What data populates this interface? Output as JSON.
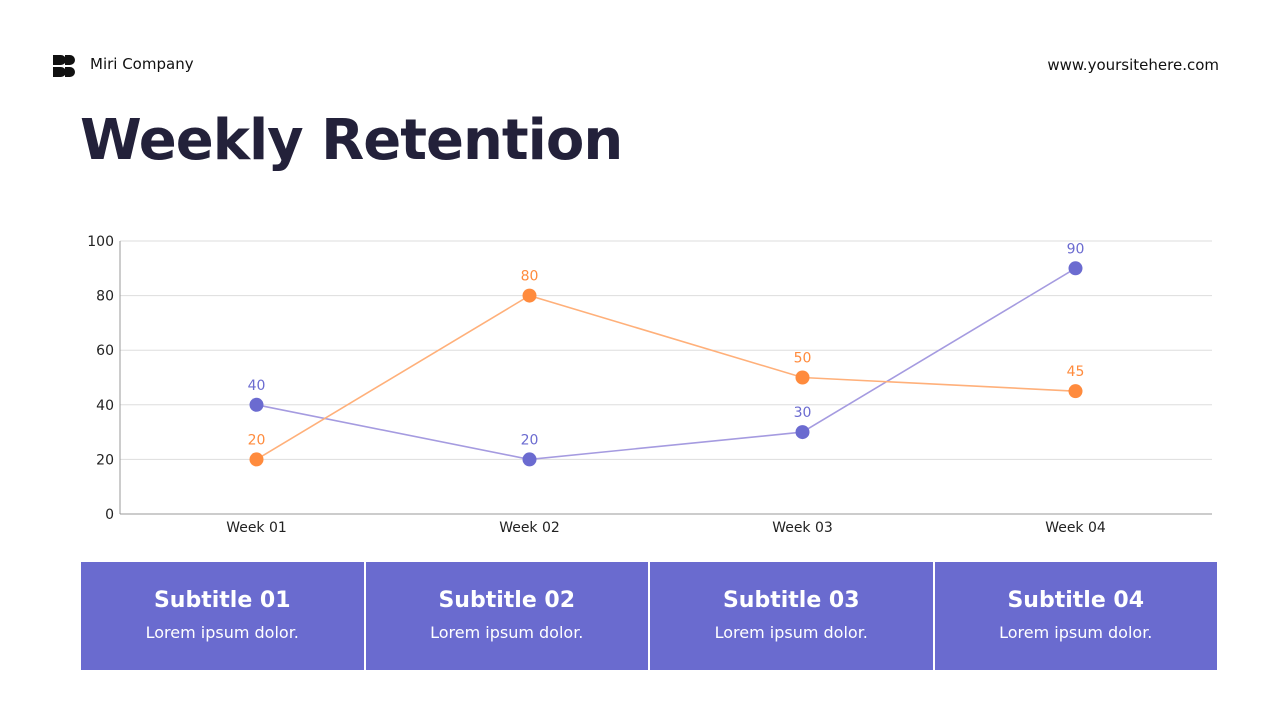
{
  "header": {
    "company": "Miri Company",
    "website": "www.yoursitehere.com",
    "logo_icon": "company-logo-icon"
  },
  "title": "Weekly Retention",
  "chart_data": {
    "type": "line",
    "categories": [
      "Week 01",
      "Week 02",
      "Week 03",
      "Week 04"
    ],
    "series": [
      {
        "values": [
          40,
          20,
          30,
          90
        ],
        "color": "#6b6bd0",
        "line_color": "#a59be0"
      },
      {
        "values": [
          20,
          80,
          50,
          45
        ],
        "color": "#ff8b3d",
        "line_color": "#ffb07a"
      }
    ],
    "ylim": [
      0,
      100
    ],
    "yticks": [
      0,
      20,
      40,
      60,
      80,
      100
    ],
    "grid": true,
    "data_labels": true
  },
  "cards": [
    {
      "title": "Subtitle 01",
      "text": "Lorem ipsum dolor."
    },
    {
      "title": "Subtitle 02",
      "text": "Lorem ipsum dolor."
    },
    {
      "title": "Subtitle 03",
      "text": "Lorem ipsum dolor."
    },
    {
      "title": "Subtitle 04",
      "text": "Lorem ipsum dolor."
    }
  ]
}
